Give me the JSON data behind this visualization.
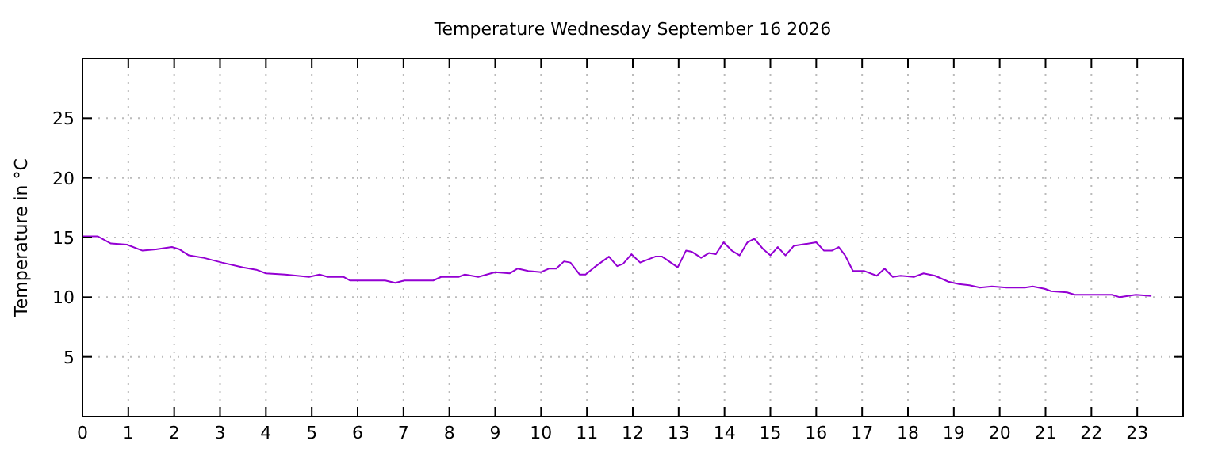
{
  "chart_data": {
    "type": "line",
    "title": "Temperature Wednesday September 16 2026",
    "ylabel": "Temperature in °C",
    "x": [
      0,
      0.33,
      0.62,
      0.97,
      1.31,
      1.6,
      1.95,
      2.12,
      2.32,
      2.64,
      3.04,
      3.5,
      3.79,
      4.0,
      4.42,
      4.94,
      5.17,
      5.35,
      5.69,
      5.83,
      6.27,
      6.6,
      6.82,
      7.02,
      7.65,
      7.82,
      8.2,
      8.34,
      8.63,
      9.0,
      9.32,
      9.49,
      9.72,
      10.0,
      10.18,
      10.33,
      10.5,
      10.64,
      10.84,
      10.97,
      11.16,
      11.48,
      11.66,
      11.79,
      11.97,
      12.16,
      12.49,
      12.64,
      12.98,
      13.16,
      13.29,
      13.49,
      13.66,
      13.81,
      13.98,
      14.16,
      14.33,
      14.5,
      14.65,
      14.85,
      15.0,
      15.16,
      15.33,
      15.51,
      16.0,
      16.17,
      16.34,
      16.49,
      16.63,
      16.8,
      17.04,
      17.32,
      17.49,
      17.67,
      17.84,
      18.13,
      18.34,
      18.59,
      18.88,
      19.11,
      19.34,
      19.57,
      19.83,
      20.15,
      20.55,
      20.72,
      20.98,
      21.12,
      21.47,
      21.64,
      22.45,
      22.62,
      22.97,
      23.31
    ],
    "series": [
      {
        "color": "#9400d3",
        "values": [
          15.1,
          15.1,
          14.5,
          14.4,
          13.9,
          14.0,
          14.2,
          14.0,
          13.5,
          13.3,
          12.9,
          12.5,
          12.3,
          12.0,
          11.9,
          11.7,
          11.9,
          11.7,
          11.7,
          11.4,
          11.4,
          11.4,
          11.2,
          11.4,
          11.4,
          11.7,
          11.7,
          11.9,
          11.7,
          12.1,
          12.0,
          12.4,
          12.2,
          12.1,
          12.4,
          12.4,
          13.0,
          12.9,
          11.9,
          11.9,
          12.5,
          13.4,
          12.6,
          12.8,
          13.6,
          12.9,
          13.4,
          13.4,
          12.5,
          13.9,
          13.8,
          13.3,
          13.7,
          13.6,
          14.6,
          13.9,
          13.5,
          14.6,
          14.9,
          14.0,
          13.5,
          14.2,
          13.5,
          14.3,
          14.6,
          13.9,
          13.9,
          14.2,
          13.5,
          12.2,
          12.2,
          11.8,
          12.4,
          11.7,
          11.8,
          11.7,
          12.0,
          11.8,
          11.3,
          11.1,
          11.0,
          10.8,
          10.9,
          10.8,
          10.8,
          10.9,
          10.7,
          10.5,
          10.4,
          10.2,
          10.2,
          10.0,
          10.2,
          10.1
        ]
      }
    ],
    "xlim": [
      0,
      24
    ],
    "xticks": [
      0,
      1,
      2,
      3,
      4,
      5,
      6,
      7,
      8,
      9,
      10,
      11,
      12,
      13,
      14,
      15,
      16,
      17,
      18,
      19,
      20,
      21,
      22,
      23
    ],
    "ylim": [
      0,
      30
    ],
    "yticks": [
      5,
      10,
      15,
      20,
      25
    ],
    "grid": true,
    "line_style": "solid"
  }
}
